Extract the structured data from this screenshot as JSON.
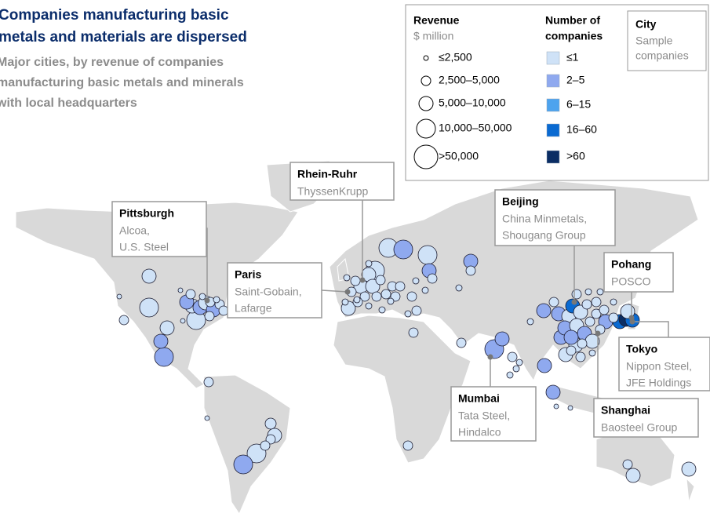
{
  "title": [
    "Companies manufacturing basic",
    "metals and materials are dispersed"
  ],
  "subtitle": [
    "Major cities, by revenue of companies",
    "manufacturing basic metals and minerals",
    "with local headquarters"
  ],
  "legend": {
    "revenue": {
      "title": "Revenue",
      "unit": "$ million",
      "items": [
        "≤2,500",
        "2,500–5,000",
        "5,000–10,000",
        "10,000–50,000",
        ">50,000"
      ]
    },
    "companies": {
      "title": [
        "Number of",
        "companies"
      ],
      "items": [
        {
          "label": "≤1",
          "color": "#cfe2f7"
        },
        {
          "label": "2–5",
          "color": "#8fa9ef"
        },
        {
          "label": "6–15",
          "color": "#4da3ee"
        },
        {
          "label": "16–60",
          "color": "#0a6ad1"
        },
        {
          "label": ">60",
          "color": "#0a2d64"
        }
      ]
    },
    "city": {
      "title": "City",
      "note": [
        "Sample",
        "companies"
      ]
    }
  },
  "callouts": [
    {
      "city": "Pittsburgh",
      "companies": [
        "Alcoa,",
        "U.S. Steel"
      ]
    },
    {
      "city": "Paris",
      "companies": [
        "Saint-Gobain,",
        "Lafarge"
      ]
    },
    {
      "city": "Rhein-Ruhr",
      "companies": [
        "ThyssenKrupp"
      ]
    },
    {
      "city": "Beijing",
      "companies": [
        "China Minmetals,",
        "Shougang Group"
      ]
    },
    {
      "city": "Pohang",
      "companies": [
        "POSCO"
      ]
    },
    {
      "city": "Tokyo",
      "companies": [
        "Nippon Steel,",
        "JFE Holdings"
      ]
    },
    {
      "city": "Mumbai",
      "companies": [
        "Tata Steel,",
        "Hindalco"
      ]
    },
    {
      "city": "Shanghai",
      "companies": [
        "Baosteel Group"
      ]
    }
  ]
}
